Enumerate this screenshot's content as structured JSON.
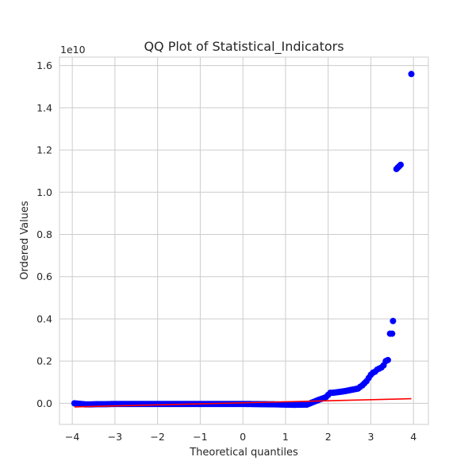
{
  "chart_data": {
    "type": "scatter",
    "title": "QQ Plot of Statistical_Indicators",
    "xlabel": "Theoretical quantiles",
    "ylabel": "Ordered Values",
    "y_offset_label": "1e10",
    "xlim": [
      -4.3,
      4.35
    ],
    "ylim": [
      -0.1,
      1.64
    ],
    "x_ticks": [
      -4,
      -3,
      -2,
      -1,
      0,
      1,
      2,
      3,
      4
    ],
    "x_tick_labels": [
      "−4",
      "−3",
      "−2",
      "−1",
      "0",
      "1",
      "2",
      "3",
      "4"
    ],
    "y_ticks": [
      0.0,
      0.2,
      0.4,
      0.6,
      0.8,
      1.0,
      1.2,
      1.4,
      1.6
    ],
    "y_tick_labels": [
      "0.0",
      "0.2",
      "0.4",
      "0.6",
      "0.8",
      "1.0",
      "1.2",
      "1.4",
      "1.6"
    ],
    "grid": true,
    "series": [
      {
        "kind": "points",
        "color": "#0000ff",
        "x": [
          -3.95,
          -3.7,
          -3.55,
          -3.4,
          -3.2,
          -3.0,
          -2.7,
          -2.4,
          -2.0,
          -1.6,
          -1.2,
          -0.8,
          -0.4,
          0.0,
          0.4,
          0.8,
          1.2,
          1.5,
          1.7,
          1.8,
          1.9,
          1.95,
          2.0,
          2.05,
          2.1,
          2.2,
          2.3,
          2.4,
          2.5,
          2.6,
          2.7,
          2.75,
          2.8,
          2.85,
          2.9,
          2.95,
          3.0,
          3.05,
          3.1,
          3.15,
          3.2,
          3.25,
          3.3,
          3.35,
          3.4,
          3.45,
          3.5,
          3.52,
          3.6,
          3.7,
          3.95
        ],
        "y": [
          0.0,
          -0.005,
          -0.005,
          -0.004,
          -0.004,
          -0.003,
          -0.003,
          -0.003,
          -0.003,
          -0.003,
          -0.003,
          -0.003,
          -0.003,
          -0.003,
          -0.004,
          -0.005,
          -0.007,
          -0.006,
          0.01,
          0.018,
          0.025,
          0.03,
          0.04,
          0.05,
          0.05,
          0.052,
          0.055,
          0.058,
          0.062,
          0.066,
          0.07,
          0.078,
          0.085,
          0.095,
          0.105,
          0.12,
          0.135,
          0.145,
          0.15,
          0.16,
          0.165,
          0.17,
          0.18,
          0.2,
          0.205,
          0.33,
          0.33,
          0.39,
          1.11,
          1.13,
          1.56
        ]
      },
      {
        "kind": "line",
        "color": "#ff0000",
        "x": [
          -3.95,
          3.95
        ],
        "y": [
          -0.017,
          0.022
        ]
      }
    ]
  }
}
